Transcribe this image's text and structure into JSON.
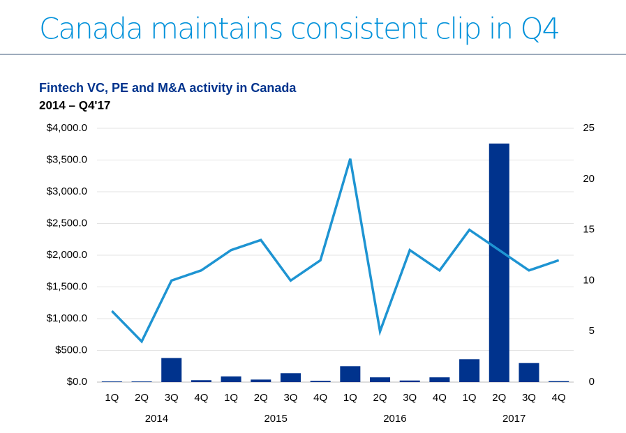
{
  "chart_data": {
    "type": "bar-line",
    "title": "Canada maintains consistent clip in Q4",
    "subtitle": "Fintech VC, PE and M&A activity in Canada",
    "subtitle2": "2014 – Q4'17",
    "categories": [
      "1Q",
      "2Q",
      "3Q",
      "4Q",
      "1Q",
      "2Q",
      "3Q",
      "4Q",
      "1Q",
      "2Q",
      "3Q",
      "4Q",
      "1Q",
      "2Q",
      "3Q",
      "4Q"
    ],
    "x_groups": [
      "2014",
      "2015",
      "2016",
      "2017"
    ],
    "series": [
      {
        "type": "bar",
        "color": "#00338d",
        "values": [
          10,
          10,
          380,
          30,
          90,
          40,
          140,
          20,
          250,
          75,
          25,
          75,
          360,
          3760,
          300,
          15
        ]
      },
      {
        "type": "line",
        "axis": "y2",
        "color": "#1e94d2",
        "values": [
          7,
          4,
          10,
          11,
          13,
          14,
          10,
          12,
          22,
          5,
          13,
          11,
          15,
          13,
          11,
          12
        ]
      }
    ],
    "ylim": [
      0,
      4000
    ],
    "yticks": [
      {
        "value": 0,
        "label": "$0.0"
      },
      {
        "value": 500,
        "label": "$500.0"
      },
      {
        "value": 1000,
        "label": "$1,000.0"
      },
      {
        "value": 1500,
        "label": "$1,500.0"
      },
      {
        "value": 2000,
        "label": "$2,000.0"
      },
      {
        "value": 2500,
        "label": "$2,500.0"
      },
      {
        "value": 3000,
        "label": "$3,000.0"
      },
      {
        "value": 3500,
        "label": "$3,500.0"
      },
      {
        "value": 4000,
        "label": "$4,000.0"
      }
    ],
    "y2lim": [
      0,
      25
    ],
    "y2ticks": [
      0,
      5,
      10,
      15,
      20,
      25
    ],
    "grid": true
  }
}
